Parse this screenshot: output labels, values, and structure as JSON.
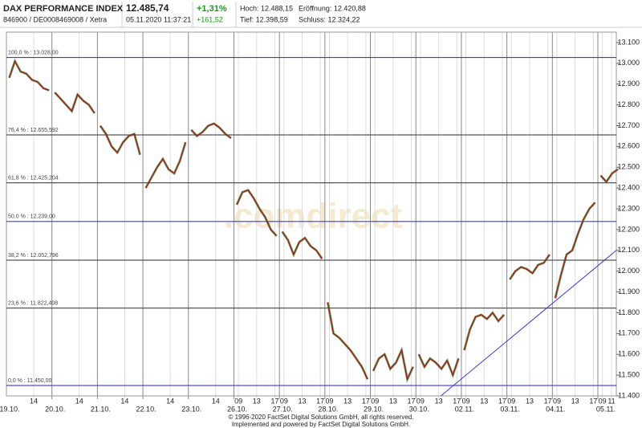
{
  "header": {
    "name": "DAX PERFORMANCE INDEX",
    "ident": "846900 / DE0008469008 / Xetra",
    "price": "12.485,74",
    "time": "05.11.2020 11:37:21",
    "change_pct": "+1,31%",
    "change_abs": "+161,52",
    "high": "Hoch: 12.488,15",
    "open": "Eröffnung: 12.420,88",
    "low": "Tief: 12.398,59",
    "close": "Schluss: 12.324,22"
  },
  "chart_data": {
    "type": "line",
    "color": "#a31c1c",
    "ylim": [
      11400,
      13150
    ],
    "yticks": [
      {
        "value": 11400,
        "label": "11.400"
      },
      {
        "value": 11500,
        "label": "11.500"
      },
      {
        "value": 11600,
        "label": "11.600"
      },
      {
        "value": 11700,
        "label": "11.700"
      },
      {
        "value": 11800,
        "label": "11.800"
      },
      {
        "value": 11900,
        "label": "11.900"
      },
      {
        "value": 12000,
        "label": "12.000"
      },
      {
        "value": 12100,
        "label": "12.100"
      },
      {
        "value": 12200,
        "label": "12.200"
      },
      {
        "value": 12300,
        "label": "12.300"
      },
      {
        "value": 12400,
        "label": "12.400"
      },
      {
        "value": 12500,
        "label": "12.500"
      },
      {
        "value": 12600,
        "label": "12.600"
      },
      {
        "value": 12700,
        "label": "12.700"
      },
      {
        "value": 12800,
        "label": "12.800"
      },
      {
        "value": 12900,
        "label": "12.900"
      },
      {
        "value": 13000,
        "label": "13.000"
      },
      {
        "value": 13100,
        "label": "13.100"
      }
    ],
    "days": [
      {
        "label": "19.10.",
        "hours": [
          "14"
        ],
        "prices": [
          12930,
          13010,
          12960,
          12950,
          12920,
          12910,
          12880,
          12870
        ]
      },
      {
        "label": "20.10.",
        "hours": [
          "14"
        ],
        "prices": [
          12860,
          12830,
          12800,
          12770,
          12850,
          12820,
          12800,
          12760
        ]
      },
      {
        "label": "21.10.",
        "hours": [
          "14"
        ],
        "prices": [
          12700,
          12660,
          12600,
          12570,
          12620,
          12650,
          12660,
          12560
        ]
      },
      {
        "label": "22.10.",
        "hours": [
          "14"
        ],
        "prices": [
          12400,
          12450,
          12500,
          12540,
          12490,
          12470,
          12530,
          12620
        ]
      },
      {
        "label": "23.10.",
        "hours": [
          "14"
        ],
        "prices": [
          12680,
          12650,
          12670,
          12700,
          12710,
          12690,
          12660,
          12640
        ]
      },
      {
        "label": "26.10.",
        "hours": [
          "09",
          "13",
          "17"
        ],
        "prices": [
          12320,
          12380,
          12390,
          12350,
          12300,
          12260,
          12200,
          12170
        ]
      },
      {
        "label": "27.10.",
        "hours": [
          "09",
          "13",
          "17"
        ],
        "prices": [
          12190,
          12150,
          12080,
          12140,
          12160,
          12120,
          12100,
          12060
        ]
      },
      {
        "label": "28.10.",
        "hours": [
          "09",
          "13",
          "17"
        ],
        "prices": [
          11850,
          11700,
          11680,
          11650,
          11620,
          11580,
          11540,
          11480
        ]
      },
      {
        "label": "29.10.",
        "hours": [
          "09",
          "13",
          "17"
        ],
        "prices": [
          11520,
          11580,
          11600,
          11530,
          11560,
          11620,
          11480,
          11540
        ]
      },
      {
        "label": "30.10.",
        "hours": [
          "09",
          "13",
          "17"
        ],
        "prices": [
          11600,
          11540,
          11580,
          11560,
          11530,
          11570,
          11500,
          11580
        ]
      },
      {
        "label": "02.11.",
        "hours": [
          "09",
          "13",
          "17"
        ],
        "prices": [
          11620,
          11720,
          11780,
          11790,
          11770,
          11800,
          11760,
          11790
        ]
      },
      {
        "label": "03.11.",
        "hours": [
          "09",
          "13",
          "17"
        ],
        "prices": [
          11960,
          12000,
          12020,
          12010,
          11990,
          12030,
          12040,
          12080
        ]
      },
      {
        "label": "04.11.",
        "hours": [
          "09",
          "13",
          "17"
        ],
        "prices": [
          11870,
          11980,
          12080,
          12100,
          12180,
          12250,
          12300,
          12330
        ]
      },
      {
        "label": "05.11.",
        "hours": [
          "09",
          "11"
        ],
        "prices": [
          12460,
          12430,
          12470,
          12490
        ]
      }
    ],
    "levels": [
      {
        "value": 13028,
        "label": "100,0 % : 13.028,00",
        "color": "#3b3bd6"
      },
      {
        "value": 12655.592,
        "label": "76,4 % : 12.655,592",
        "color": "#555555"
      },
      {
        "value": 12425.204,
        "label": "61,8 % : 12.425,204",
        "color": "#555555"
      },
      {
        "value": 12239,
        "label": "50,0 % : 12.239,00",
        "color": "#3b3bd6"
      },
      {
        "value": 12052.796,
        "label": "38,2 % : 12.052,796",
        "color": "#555555"
      },
      {
        "value": 11822.408,
        "label": "23,6 % : 11.822,408",
        "color": "#555555"
      },
      {
        "value": 11450,
        "label": "0,0 % : 11.450,00",
        "color": "#3b3bd6"
      }
    ],
    "trend_line": {
      "values": [
        11400,
        12100
      ],
      "color": "#3b3bd6"
    },
    "watermark": ".comdirect",
    "footer": [
      "© 1996-2020 FactSet Digital Solutions GmbH, all rights reserved.",
      "Implemented and powered by FactSet Digital Solutions GmbH."
    ]
  }
}
